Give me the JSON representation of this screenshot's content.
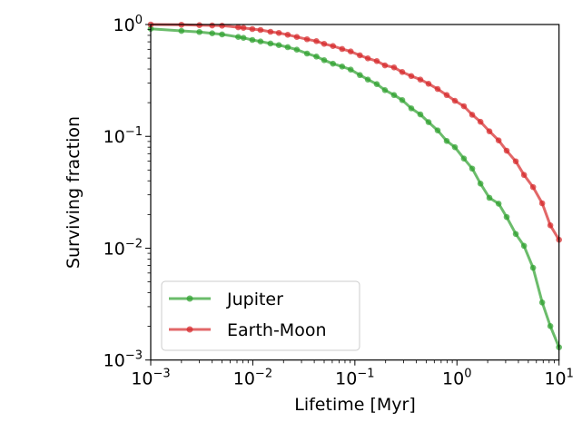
{
  "chart_data": {
    "type": "line",
    "xlabel": "Lifetime [Myr]",
    "ylabel": "Surviving fraction",
    "xscale": "log",
    "yscale": "log",
    "xlim": [
      0.001,
      10
    ],
    "ylim": [
      0.001,
      1
    ],
    "xticks": [
      {
        "v": 0.001,
        "base": "10",
        "exp": "−3"
      },
      {
        "v": 0.01,
        "base": "10",
        "exp": "−2"
      },
      {
        "v": 0.1,
        "base": "10",
        "exp": "−1"
      },
      {
        "v": 1,
        "base": "10",
        "exp": "0"
      },
      {
        "v": 10,
        "base": "10",
        "exp": "1"
      }
    ],
    "yticks": [
      {
        "v": 0.001,
        "base": "10",
        "exp": "−3"
      },
      {
        "v": 0.01,
        "base": "10",
        "exp": "−2"
      },
      {
        "v": 0.1,
        "base": "10",
        "exp": "−1"
      },
      {
        "v": 1,
        "base": "10",
        "exp": "0"
      }
    ],
    "grid": false,
    "legend_position": "lower-left",
    "x": [
      0.001,
      0.002,
      0.003,
      0.004,
      0.005,
      0.0072,
      0.0081,
      0.0099,
      0.0119,
      0.0149,
      0.018,
      0.022,
      0.027,
      0.034,
      0.042,
      0.05,
      0.061,
      0.075,
      0.091,
      0.112,
      0.134,
      0.164,
      0.197,
      0.242,
      0.291,
      0.357,
      0.438,
      0.527,
      0.647,
      0.794,
      0.955,
      1.17,
      1.41,
      1.7,
      2.08,
      2.56,
      3.07,
      3.77,
      4.54,
      5.57,
      6.84,
      8.22,
      10
    ],
    "series": [
      {
        "name": "Jupiter",
        "color": "#2ca02c",
        "values": [
          0.916,
          0.877,
          0.857,
          0.834,
          0.815,
          0.774,
          0.76,
          0.728,
          0.705,
          0.676,
          0.654,
          0.627,
          0.596,
          0.55,
          0.517,
          0.48,
          0.446,
          0.421,
          0.395,
          0.353,
          0.322,
          0.293,
          0.259,
          0.234,
          0.211,
          0.178,
          0.157,
          0.134,
          0.113,
          0.091,
          0.08,
          0.0633,
          0.0515,
          0.0378,
          0.0282,
          0.025,
          0.019,
          0.0134,
          0.0105,
          0.00668,
          0.00327,
          0.00201,
          0.0013
        ]
      },
      {
        "name": "Earth-Moon",
        "color": "#d62728",
        "values": [
          1.0,
          0.995,
          0.987,
          0.981,
          0.976,
          0.945,
          0.933,
          0.911,
          0.894,
          0.861,
          0.841,
          0.81,
          0.774,
          0.738,
          0.71,
          0.671,
          0.642,
          0.604,
          0.574,
          0.53,
          0.498,
          0.471,
          0.431,
          0.413,
          0.376,
          0.346,
          0.322,
          0.295,
          0.265,
          0.234,
          0.208,
          0.186,
          0.156,
          0.135,
          0.111,
          0.092,
          0.0744,
          0.0598,
          0.0452,
          0.0352,
          0.0252,
          0.016,
          0.0119
        ]
      }
    ]
  }
}
